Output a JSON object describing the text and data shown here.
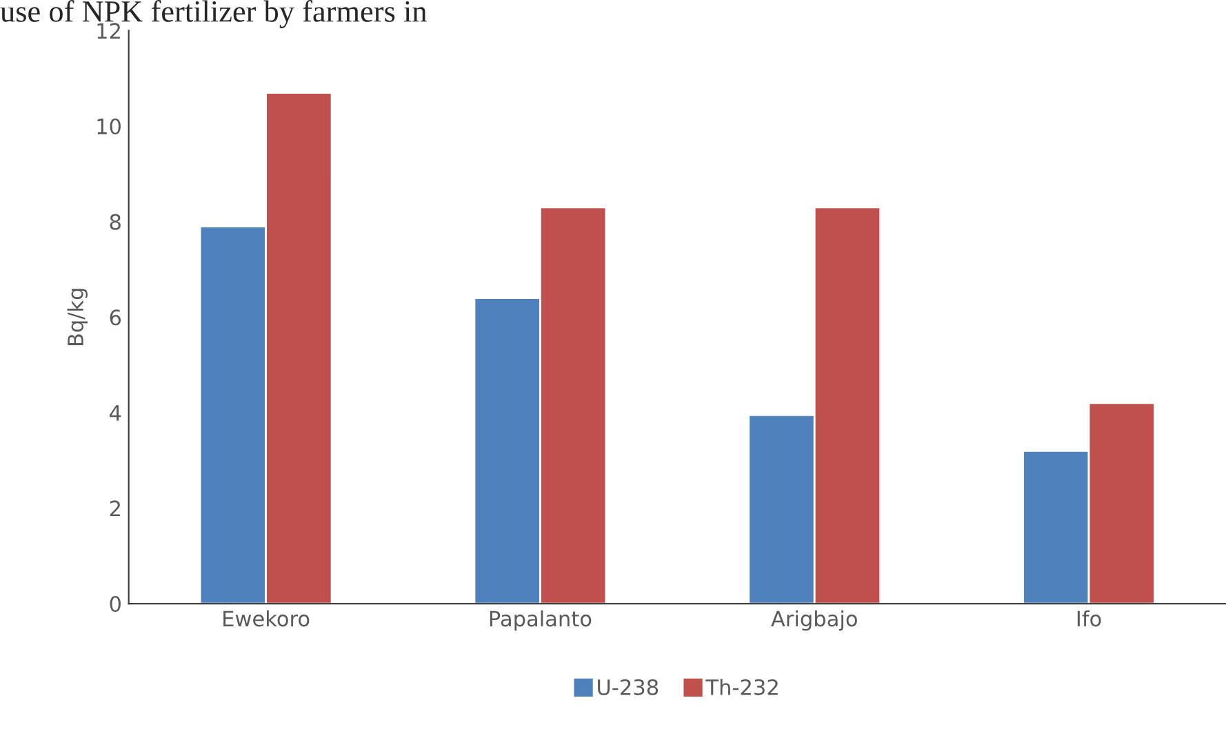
{
  "chart_data": {
    "type": "bar",
    "categories": [
      "Ewekoro",
      "Papalanto",
      "Arigbajo",
      "Ifo"
    ],
    "series": [
      {
        "name": "U-238",
        "color": "#4f81bd",
        "values": [
          7.9,
          6.4,
          3.95,
          3.2
        ]
      },
      {
        "name": "Th-232",
        "color": "#c0504d",
        "values": [
          10.7,
          8.3,
          8.3,
          4.2
        ]
      }
    ],
    "ylabel": "Bq/kg",
    "ylim": [
      0,
      12
    ],
    "yticks": [
      0,
      2,
      4,
      6,
      8,
      10,
      12
    ],
    "grid": false,
    "legend": "bottom",
    "annotations": [
      "use of NPK fertilizer by farmers in"
    ]
  }
}
